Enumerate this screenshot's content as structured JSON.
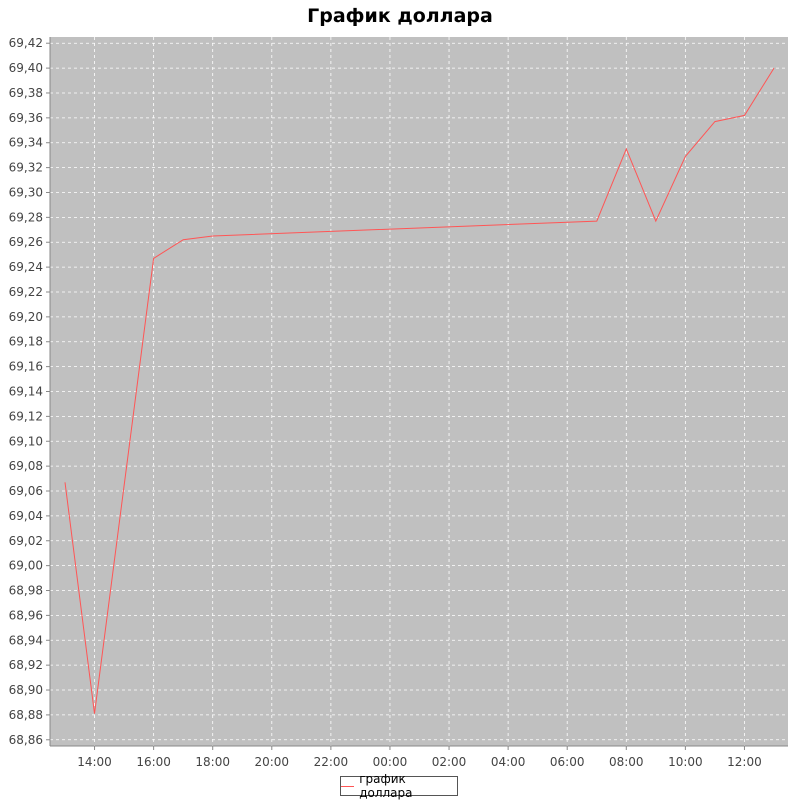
{
  "chart_data": {
    "type": "line",
    "title": "График доллара",
    "xlabel": "",
    "ylabel": "",
    "ylim": [
      68.855,
      69.425
    ],
    "grid": true,
    "legend_position": "bottom-center",
    "x_ticks": [
      "14:00",
      "16:00",
      "18:00",
      "20:00",
      "22:00",
      "00:00",
      "02:00",
      "04:00",
      "06:00",
      "08:00",
      "10:00",
      "12:00"
    ],
    "y_ticks": [
      "68,86",
      "68,88",
      "68,90",
      "68,92",
      "68,94",
      "68,96",
      "68,98",
      "69,00",
      "69,02",
      "69,04",
      "69,06",
      "69,08",
      "69,10",
      "69,12",
      "69,14",
      "69,16",
      "69,18",
      "69,20",
      "69,22",
      "69,24",
      "69,26",
      "69,28",
      "69,30",
      "69,32",
      "69,34",
      "69,36",
      "69,38",
      "69,40",
      "69,42"
    ],
    "series": [
      {
        "name": "график доллара",
        "color": "#ff5555",
        "x": [
          "13:00",
          "14:00",
          "16:00",
          "17:00",
          "18:00",
          "07:00",
          "08:00",
          "09:00",
          "10:00",
          "11:00",
          "12:00",
          "13:00"
        ],
        "values": [
          69.067,
          68.881,
          69.247,
          69.262,
          69.265,
          69.277,
          69.335,
          69.277,
          69.329,
          69.357,
          69.362,
          69.4
        ]
      }
    ]
  },
  "colors": {
    "plot_background": "#c0c0c0",
    "gridline": "#ffffff",
    "line": "#ff5555"
  }
}
